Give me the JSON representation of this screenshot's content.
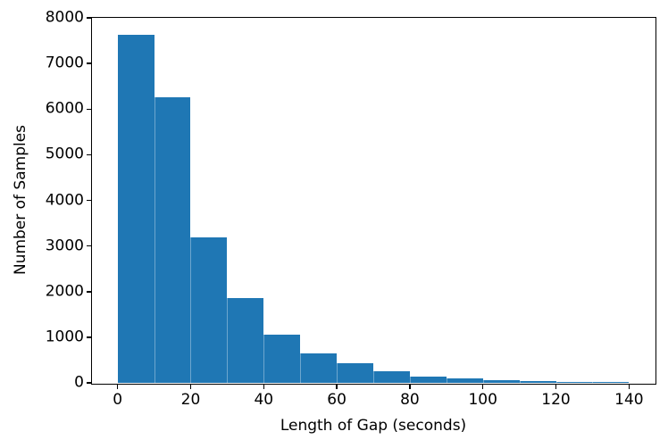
{
  "chart_data": {
    "type": "bar",
    "subtype": "histogram",
    "title": "",
    "xlabel": "Length of Gap (seconds)",
    "ylabel": "Number of Samples",
    "bin_edges": [
      0,
      10,
      20,
      30,
      40,
      50,
      60,
      70,
      80,
      90,
      100,
      110,
      120,
      130,
      140
    ],
    "values": [
      7630,
      6250,
      3180,
      1860,
      1050,
      650,
      430,
      250,
      140,
      95,
      65,
      40,
      25,
      15
    ],
    "xlim": [
      -7,
      147
    ],
    "ylim": [
      0,
      8000
    ],
    "x_ticks": [
      0,
      20,
      40,
      60,
      80,
      100,
      120,
      140
    ],
    "x_tick_labels": [
      "0",
      "20",
      "40",
      "60",
      "80",
      "100",
      "120",
      "140"
    ],
    "y_ticks": [
      0,
      1000,
      2000,
      3000,
      4000,
      5000,
      6000,
      7000,
      8000
    ],
    "y_tick_labels": [
      "0",
      "1000",
      "2000",
      "3000",
      "4000",
      "5000",
      "6000",
      "7000",
      "8000"
    ],
    "bar_color": "#1f77b4",
    "axis_color": "#000000",
    "text_color": "#000000",
    "background_color": "#ffffff",
    "grid": false,
    "legend": null
  }
}
